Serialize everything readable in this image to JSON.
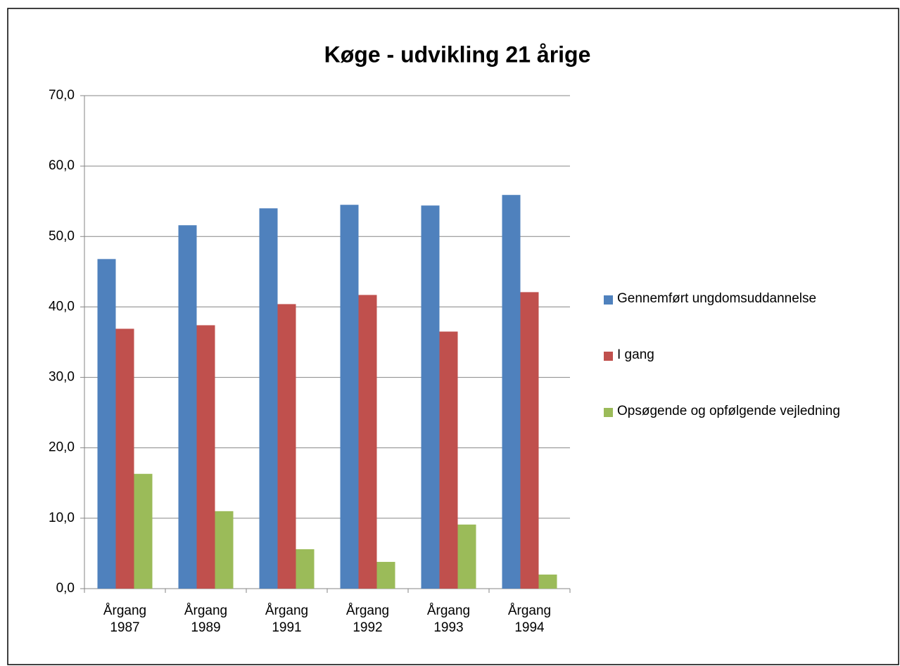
{
  "chart_data": {
    "type": "bar",
    "title": "Køge - udvikling 21 årige",
    "categories": [
      "Årgang 1987",
      "Årgang 1989",
      "Årgang 1991",
      "Årgang 1992",
      "Årgang 1993",
      "Årgang 1994"
    ],
    "series": [
      {
        "name": "Gennemført ungdomsuddannelse",
        "color": "#4f81bd",
        "values": [
          46.8,
          51.6,
          54.0,
          54.5,
          54.4,
          55.9
        ]
      },
      {
        "name": "I gang",
        "color": "#c0504d",
        "values": [
          36.9,
          37.4,
          40.4,
          41.7,
          36.5,
          42.1
        ]
      },
      {
        "name": "Opsøgende og opfølgende vejledning",
        "color": "#9bbb59",
        "values": [
          16.3,
          11.0,
          5.6,
          3.8,
          9.1,
          2.0
        ]
      }
    ],
    "ylim": [
      0,
      70
    ],
    "yticks": [
      {
        "value": 0,
        "label": "0,0"
      },
      {
        "value": 10,
        "label": "10,0"
      },
      {
        "value": 20,
        "label": "20,0"
      },
      {
        "value": 30,
        "label": "30,0"
      },
      {
        "value": 40,
        "label": "40,0"
      },
      {
        "value": 50,
        "label": "50,0"
      },
      {
        "value": 60,
        "label": "60,0"
      },
      {
        "value": 70,
        "label": "70,0"
      }
    ],
    "grid": true,
    "legend": "right"
  }
}
